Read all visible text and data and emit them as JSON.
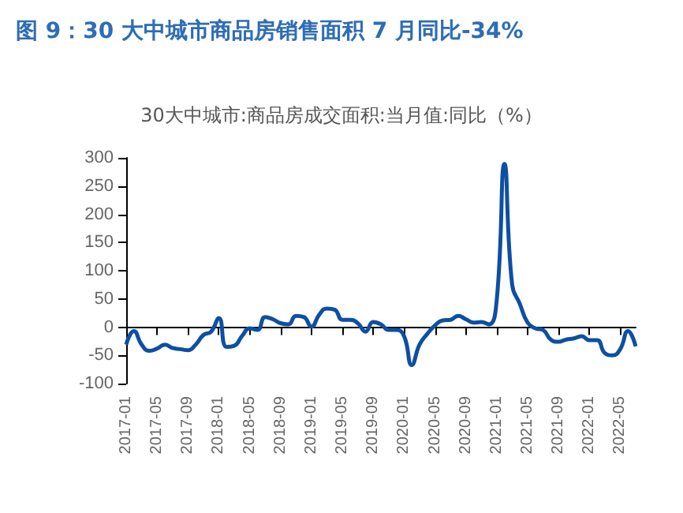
{
  "chart_data": {
    "type": "line",
    "title": "图 9：30 大中城市商品房销售面积 7 月同比-34%",
    "subtitle": "30大中城市:商品房成交面积:当月值:同比（%）",
    "categories": [
      "2017-01",
      null,
      null,
      null,
      "2017-05",
      null,
      null,
      null,
      "2017-09",
      null,
      null,
      null,
      "2018-01",
      null,
      null,
      null,
      "2018-05",
      null,
      null,
      null,
      "2018-09",
      null,
      null,
      null,
      "2019-01",
      null,
      null,
      null,
      "2019-05",
      null,
      null,
      null,
      "2019-09",
      null,
      null,
      null,
      "2020-01",
      null,
      null,
      null,
      "2020-05",
      null,
      null,
      null,
      "2020-09",
      null,
      null,
      null,
      "2021-01",
      null,
      null,
      null,
      "2021-05",
      null,
      null,
      null,
      "2021-09",
      null,
      null,
      null,
      "2022-01",
      null,
      null,
      null,
      "2022-05",
      null,
      null
    ],
    "series": [
      {
        "color": "#0d4fa3",
        "values": [
          -31,
          -7,
          -31,
          -42,
          -38,
          -31,
          -37,
          -39,
          -41,
          -31,
          -14,
          -8,
          16,
          -35,
          -33,
          -16,
          -2,
          -5,
          18,
          14,
          7,
          5,
          20,
          18,
          1,
          22,
          33,
          31,
          13,
          13,
          7,
          -8,
          9,
          5,
          -5,
          -5,
          -16,
          -67,
          -31,
          -12,
          3,
          12,
          13,
          20,
          14,
          8,
          9,
          5,
          48,
          289,
          75,
          41,
          8,
          -2,
          -5,
          -22,
          -26,
          -22,
          -20,
          -16,
          -23,
          -23,
          -46,
          -50,
          -39,
          -7,
          -34
        ]
      }
    ],
    "ylim": [
      -100,
      300
    ],
    "yticks": [
      -100,
      -50,
      0,
      50,
      100,
      150,
      200,
      250,
      300
    ],
    "marker": "none",
    "line_style": "solid"
  }
}
